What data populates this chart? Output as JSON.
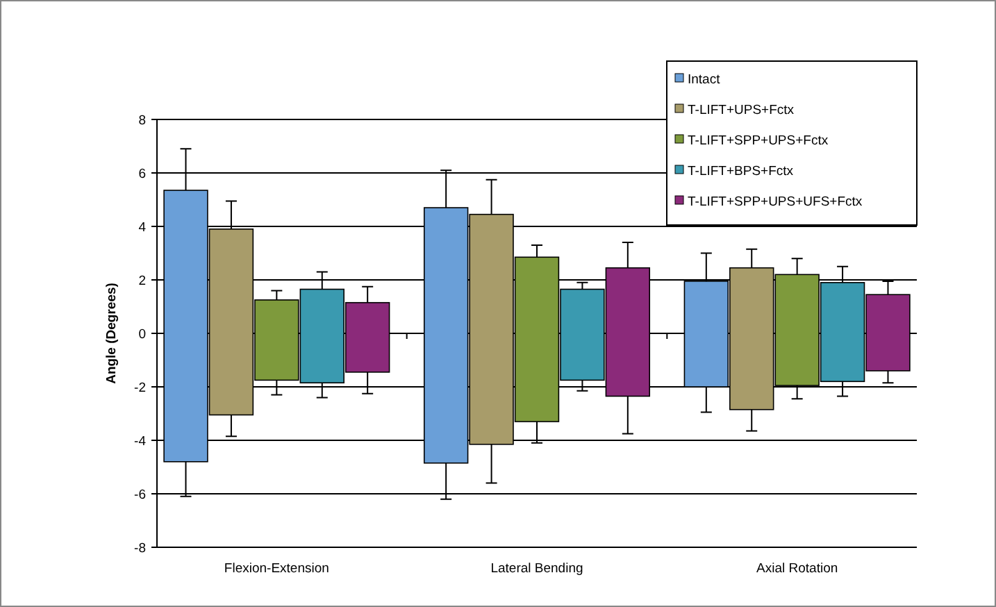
{
  "chart_data": {
    "type": "bar",
    "ylabel": "Angle (Degrees)",
    "categories": [
      "Flexion-Extension",
      "Lateral Bending",
      "Axial Rotation"
    ],
    "ylim": [
      -8,
      8
    ],
    "yticks": [
      -8,
      -6,
      -4,
      -2,
      0,
      2,
      4,
      6,
      8
    ],
    "grid": "y",
    "legend": "top right",
    "series": [
      {
        "name": "Intact",
        "color": "#6a9fd8",
        "base": [
          -4.8,
          -4.85,
          -2.0
        ],
        "values": [
          10.15,
          9.55,
          3.95
        ],
        "errors": [
          [
            -6.1,
            6.9
          ],
          [
            -6.2,
            6.1
          ],
          [
            -2.95,
            3.0
          ]
        ]
      },
      {
        "name": "T-LIFT+UPS+Fctx",
        "color": "#a89c6a",
        "base": [
          -3.05,
          -4.15,
          -2.85
        ],
        "values": [
          6.95,
          8.6,
          5.3
        ],
        "errors": [
          [
            -3.85,
            4.95
          ],
          [
            -5.6,
            5.75
          ],
          [
            -3.65,
            3.15
          ]
        ]
      },
      {
        "name": "T-LIFT+SPP+UPS+Fctx",
        "color": "#7e9a3c",
        "base": [
          -1.75,
          -3.3,
          -1.95
        ],
        "values": [
          3.0,
          6.15,
          4.15
        ],
        "errors": [
          [
            -2.3,
            1.6
          ],
          [
            -4.1,
            3.3
          ],
          [
            -2.45,
            2.8
          ]
        ]
      },
      {
        "name": "T-LIFT+BPS+Fctx",
        "color": "#3a9ab0",
        "base": [
          -1.85,
          -1.75,
          -1.8
        ],
        "values": [
          3.5,
          3.4,
          3.7
        ],
        "errors": [
          [
            -2.4,
            2.3
          ],
          [
            -2.15,
            1.9
          ],
          [
            -2.35,
            2.5
          ]
        ]
      },
      {
        "name": "T-LIFT+SPP+UPS+UFS+Fctx",
        "color": "#8b2a7a",
        "base": [
          -1.45,
          -2.35,
          -1.4
        ],
        "values": [
          2.6,
          4.8,
          2.85
        ],
        "errors": [
          [
            -2.25,
            1.75
          ],
          [
            -3.75,
            3.4
          ],
          [
            -1.85,
            1.95
          ]
        ]
      }
    ]
  }
}
